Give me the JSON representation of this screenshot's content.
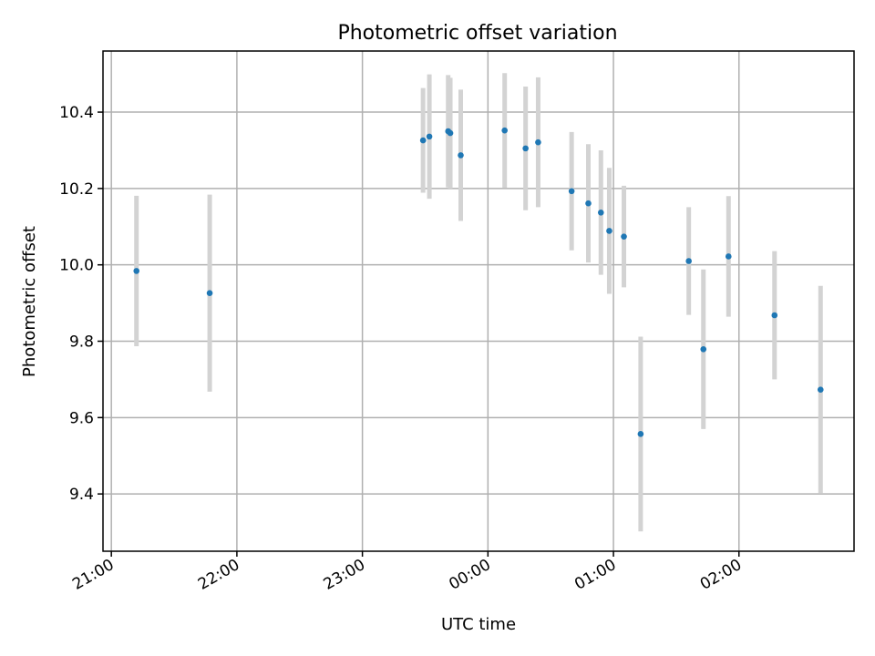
{
  "chart_data": {
    "type": "scatter",
    "title": "Photometric offset variation",
    "xlabel": "UTC time",
    "ylabel": "Photometric offset",
    "x_tick_labels": [
      "21:00",
      "22:00",
      "23:00",
      "00:00",
      "01:00",
      "02:00"
    ],
    "x_ticks": [
      "21:00",
      "22:00",
      "23:00",
      "00:00",
      "01:00",
      "02:00"
    ],
    "y_ticks": [
      9.4,
      9.6,
      9.8,
      10.0,
      10.2,
      10.4
    ],
    "y_tick_labels": [
      "9.4",
      "9.6",
      "9.8",
      "10.0",
      "10.2",
      "10.4"
    ],
    "xlim": [
      "20:56",
      "02:55"
    ],
    "ylim": [
      9.25,
      10.56
    ],
    "grid": true,
    "marker_color": "#1f77b4",
    "errorbar_color": "#d3d3d3",
    "points": [
      {
        "time": "21:12",
        "y": 9.984,
        "yerr": 0.197
      },
      {
        "time": "21:47",
        "y": 9.926,
        "yerr": 0.258
      },
      {
        "time": "23:29",
        "y": 10.326,
        "yerr": 0.137
      },
      {
        "time": "23:32",
        "y": 10.336,
        "yerr": 0.163
      },
      {
        "time": "23:41",
        "y": 10.35,
        "yerr": 0.147
      },
      {
        "time": "23:42",
        "y": 10.345,
        "yerr": 0.145
      },
      {
        "time": "23:47",
        "y": 10.287,
        "yerr": 0.172
      },
      {
        "time": "00:08",
        "y": 10.352,
        "yerr": 0.15
      },
      {
        "time": "00:18",
        "y": 10.305,
        "yerr": 0.162
      },
      {
        "time": "00:24",
        "y": 10.321,
        "yerr": 0.17
      },
      {
        "time": "00:40",
        "y": 10.193,
        "yerr": 0.155
      },
      {
        "time": "00:48",
        "y": 10.161,
        "yerr": 0.155
      },
      {
        "time": "00:54",
        "y": 10.137,
        "yerr": 0.163
      },
      {
        "time": "00:58",
        "y": 10.089,
        "yerr": 0.165
      },
      {
        "time": "01:05",
        "y": 10.074,
        "yerr": 0.133
      },
      {
        "time": "01:13",
        "y": 9.557,
        "yerr": 0.255
      },
      {
        "time": "01:36",
        "y": 10.01,
        "yerr": 0.141
      },
      {
        "time": "01:43",
        "y": 9.779,
        "yerr": 0.209
      },
      {
        "time": "01:55",
        "y": 10.022,
        "yerr": 0.158
      },
      {
        "time": "02:17",
        "y": 9.868,
        "yerr": 0.168
      },
      {
        "time": "02:39",
        "y": 9.673,
        "yerr": 0.272
      }
    ]
  }
}
